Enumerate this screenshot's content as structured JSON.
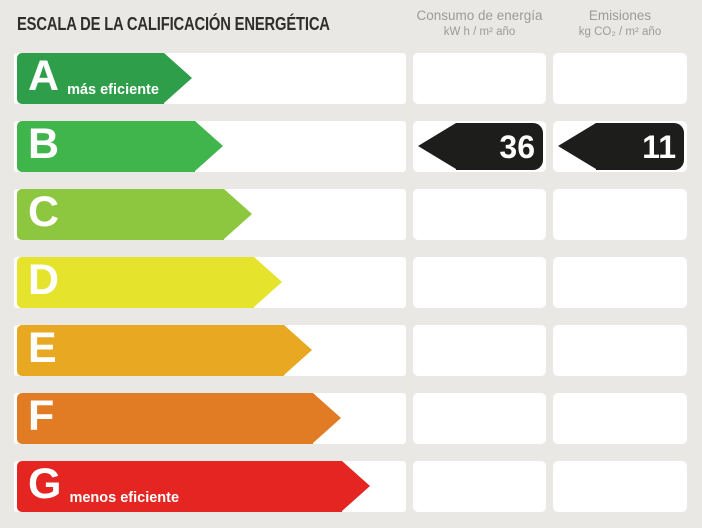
{
  "title": "ESCALA DE LA CALIFICACIÓN ENERGÉTICA",
  "columns": [
    {
      "label": "Consumo de energía",
      "unit": "kW h / m² año"
    },
    {
      "label": "Emisiones",
      "unit": "kg CO₂ / m² año"
    }
  ],
  "rows": [
    {
      "letter": "A",
      "note": "más eficiente",
      "color": "#2f9e4b",
      "arrow_width": 175
    },
    {
      "letter": "B",
      "note": "",
      "color": "#40b54b",
      "arrow_width": 206
    },
    {
      "letter": "C",
      "note": "",
      "color": "#8dc63f",
      "arrow_width": 235
    },
    {
      "letter": "D",
      "note": "",
      "color": "#e5e32b",
      "arrow_width": 265
    },
    {
      "letter": "E",
      "note": "",
      "color": "#e9a822",
      "arrow_width": 295
    },
    {
      "letter": "F",
      "note": "",
      "color": "#e17c25",
      "arrow_width": 324
    },
    {
      "letter": "G",
      "note": "menos eficiente",
      "color": "#e42522",
      "arrow_width": 353
    }
  ],
  "rating": {
    "letter": "B",
    "consumption_value": "36",
    "emissions_value": "11"
  },
  "colors": {
    "background": "#e9e8e5",
    "row_background": "#ffffff",
    "pointer": "#1d1d1b",
    "title_text": "#2f2f2d",
    "header_text": "#9b9b97"
  },
  "chart_data": {
    "type": "bar",
    "title": "ESCALA DE LA CALIFICACIÓN ENERGÉTICA",
    "categories": [
      "A",
      "B",
      "C",
      "D",
      "E",
      "F",
      "G"
    ],
    "category_colors": [
      "#2f9e4b",
      "#40b54b",
      "#8dc63f",
      "#e5e32b",
      "#e9a822",
      "#e17c25",
      "#e42522"
    ],
    "annotations": [
      "A = más eficiente",
      "G = menos eficiente"
    ],
    "rating": "B",
    "series": [
      {
        "name": "Consumo de energía (kW h / m² año)",
        "values": [
          null,
          36,
          null,
          null,
          null,
          null,
          null
        ]
      },
      {
        "name": "Emisiones (kg CO₂ / m² año)",
        "values": [
          null,
          11,
          null,
          null,
          null,
          null,
          null
        ]
      }
    ],
    "legend_position": "top",
    "grid": false
  }
}
